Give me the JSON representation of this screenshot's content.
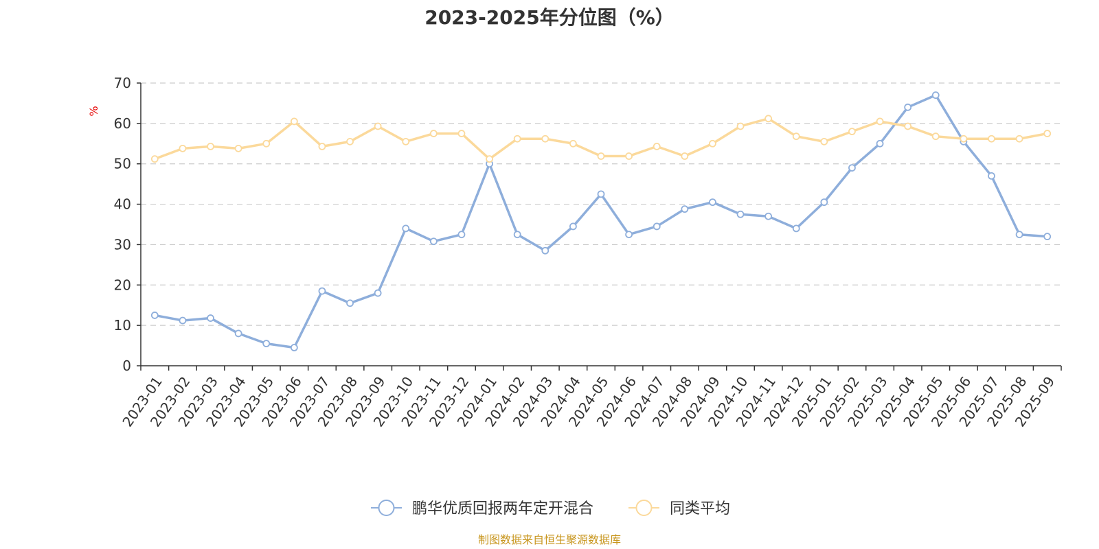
{
  "chart_data": {
    "type": "line",
    "title": "2023-2025年分位图（%）",
    "ylabel": "%",
    "ylim": [
      0,
      70
    ],
    "yticks": [
      0,
      10,
      20,
      30,
      40,
      50,
      60,
      70
    ],
    "grid": true,
    "legend_position": "bottom-center",
    "categories": [
      "2023-01",
      "2023-02",
      "2023-03",
      "2023-04",
      "2023-05",
      "2023-06",
      "2023-07",
      "2023-08",
      "2023-09",
      "2023-10",
      "2023-11",
      "2023-12",
      "2024-01",
      "2024-02",
      "2024-03",
      "2024-04",
      "2024-05",
      "2024-06",
      "2024-07",
      "2024-08",
      "2024-09",
      "2024-10",
      "2024-11",
      "2024-12",
      "2025-01",
      "2025-02",
      "2025-03",
      "2025-04",
      "2025-05",
      "2025-06",
      "2025-07",
      "2025-08",
      "2025-09"
    ],
    "series": [
      {
        "name": "鹏华优质回报两年定开混合",
        "color": "#8eaedb",
        "values": [
          12.5,
          11.2,
          11.8,
          8.0,
          5.5,
          4.5,
          18.5,
          15.5,
          18.0,
          34.0,
          30.8,
          32.5,
          50.0,
          32.5,
          28.5,
          34.5,
          42.5,
          32.5,
          34.5,
          38.8,
          40.5,
          37.5,
          37.0,
          34.0,
          40.5,
          49.0,
          55.0,
          64.0,
          67.0,
          55.5,
          47.0,
          32.5,
          32.0
        ]
      },
      {
        "name": "同类平均",
        "color": "#fbd99b",
        "values": [
          51.2,
          53.8,
          54.3,
          53.8,
          55.0,
          60.5,
          54.3,
          55.5,
          59.3,
          55.5,
          57.5,
          57.5,
          51.2,
          56.2,
          56.2,
          55.0,
          51.9,
          51.9,
          54.3,
          51.9,
          55.0,
          59.3,
          61.2,
          56.8,
          55.5,
          58.0,
          60.5,
          59.3,
          56.8,
          56.2,
          56.2,
          56.2,
          57.5
        ]
      }
    ],
    "source": "制图数据来自恒生聚源数据库"
  }
}
